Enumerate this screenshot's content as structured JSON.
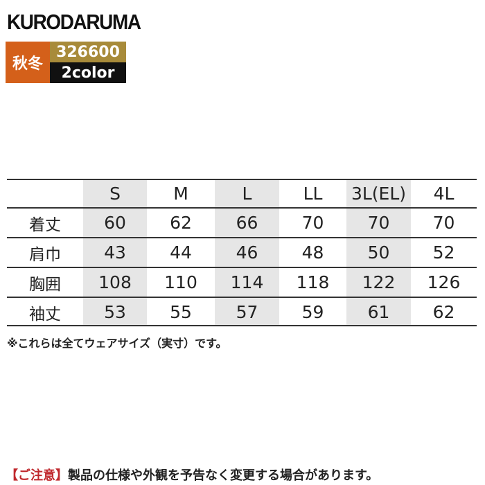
{
  "header": {
    "brand": "KURODARUMA",
    "season": "秋冬",
    "product_code": "326600",
    "colors": "2color"
  },
  "table": {
    "columns": [
      "S",
      "M",
      "L",
      "LL",
      "3L(EL)",
      "4L"
    ],
    "rows": [
      {
        "label": "着丈",
        "values": [
          60,
          62,
          66,
          70,
          70,
          70
        ]
      },
      {
        "label": "肩巾",
        "values": [
          43,
          44,
          46,
          48,
          50,
          52
        ]
      },
      {
        "label": "胸囲",
        "values": [
          108,
          110,
          114,
          118,
          122,
          126
        ]
      },
      {
        "label": "袖丈",
        "values": [
          53,
          55,
          57,
          59,
          61,
          62
        ]
      }
    ]
  },
  "note": "※これらは全てウェアサイズ（実寸）です。",
  "footer": {
    "caution_label": "【ご注意】",
    "caution_text": "製品の仕様や外観を予告なく変更する場合があります。"
  }
}
